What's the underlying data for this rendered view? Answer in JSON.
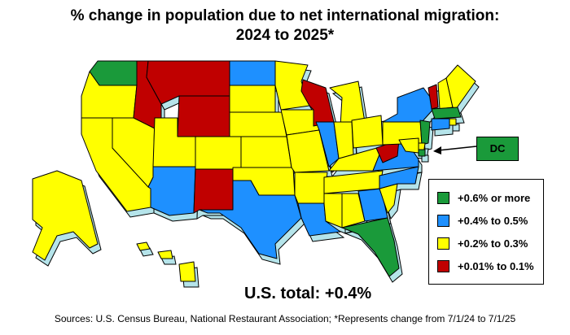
{
  "title_line1": "% change in population due to net international migration:",
  "title_line2": "2024 to 2025*",
  "dc_label": "DC",
  "total_label": "U.S. total: +0.4%",
  "sources": "Sources: U.S. Census Bureau, National Restaurant Association; *Represents change from 7/1/24 to 7/1/25",
  "colors": {
    "highest": "#1a9a3a",
    "high": "#1e90ff",
    "mid": "#ffff00",
    "low": "#c00000",
    "extrusion": "#b5e4ea",
    "outline": "#000000"
  },
  "legend": [
    {
      "label": "+0.6% or more",
      "color": "#1a9a3a",
      "class": "highest"
    },
    {
      "label": "+0.4% to 0.5%",
      "color": "#1e90ff",
      "class": "high"
    },
    {
      "label": "+0.2% to 0.3%",
      "color": "#ffff00",
      "class": "mid"
    },
    {
      "label": "+0.01% to 0.1%",
      "color": "#c00000",
      "class": "low"
    }
  ],
  "states": [
    {
      "name": "WA",
      "class": "highest"
    },
    {
      "name": "OR",
      "class": "mid"
    },
    {
      "name": "CA",
      "class": "mid"
    },
    {
      "name": "NV",
      "class": "mid"
    },
    {
      "name": "ID",
      "class": "low"
    },
    {
      "name": "MT",
      "class": "low"
    },
    {
      "name": "WY",
      "class": "low"
    },
    {
      "name": "UT",
      "class": "mid"
    },
    {
      "name": "AZ",
      "class": "high"
    },
    {
      "name": "CO",
      "class": "mid"
    },
    {
      "name": "NM",
      "class": "low"
    },
    {
      "name": "ND",
      "class": "high"
    },
    {
      "name": "SD",
      "class": "mid"
    },
    {
      "name": "NE",
      "class": "mid"
    },
    {
      "name": "KS",
      "class": "mid"
    },
    {
      "name": "OK",
      "class": "mid"
    },
    {
      "name": "TX",
      "class": "high"
    },
    {
      "name": "MN",
      "class": "mid"
    },
    {
      "name": "IA",
      "class": "mid"
    },
    {
      "name": "MO",
      "class": "mid"
    },
    {
      "name": "AR",
      "class": "mid"
    },
    {
      "name": "LA",
      "class": "high"
    },
    {
      "name": "WI",
      "class": "low"
    },
    {
      "name": "IL",
      "class": "high"
    },
    {
      "name": "MI",
      "class": "mid"
    },
    {
      "name": "IN",
      "class": "mid"
    },
    {
      "name": "OH",
      "class": "mid"
    },
    {
      "name": "KY",
      "class": "mid"
    },
    {
      "name": "TN",
      "class": "mid"
    },
    {
      "name": "MS",
      "class": "mid"
    },
    {
      "name": "AL",
      "class": "mid"
    },
    {
      "name": "GA",
      "class": "high"
    },
    {
      "name": "FL",
      "class": "highest"
    },
    {
      "name": "SC",
      "class": "mid"
    },
    {
      "name": "NC",
      "class": "high"
    },
    {
      "name": "VA",
      "class": "high"
    },
    {
      "name": "WV",
      "class": "low"
    },
    {
      "name": "PA",
      "class": "mid"
    },
    {
      "name": "NY",
      "class": "high"
    },
    {
      "name": "VT",
      "class": "low"
    },
    {
      "name": "NH",
      "class": "mid"
    },
    {
      "name": "ME",
      "class": "mid"
    },
    {
      "name": "MA",
      "class": "highest"
    },
    {
      "name": "RI",
      "class": "mid"
    },
    {
      "name": "CT",
      "class": "high"
    },
    {
      "name": "NJ",
      "class": "highest"
    },
    {
      "name": "DE",
      "class": "mid"
    },
    {
      "name": "MD",
      "class": "mid"
    },
    {
      "name": "DC",
      "class": "highest"
    },
    {
      "name": "AK",
      "class": "mid"
    },
    {
      "name": "HI",
      "class": "mid"
    }
  ]
}
